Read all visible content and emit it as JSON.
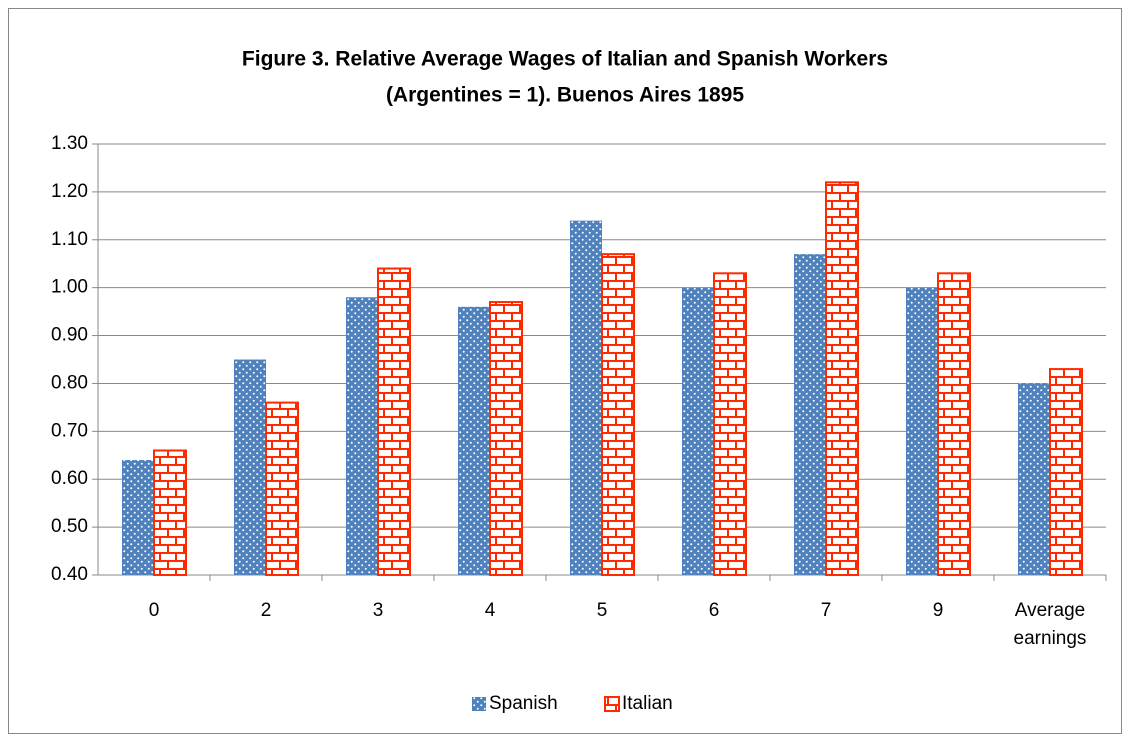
{
  "chart_data": {
    "type": "bar",
    "title": [
      "Figure 3. Relative Average Wages of Italian and Spanish Workers",
      "(Argentines = 1). Buenos Aires 1895"
    ],
    "categories": [
      "0",
      "2",
      "3",
      "4",
      "5",
      "6",
      "7",
      "9",
      "Average earnings"
    ],
    "series": [
      {
        "name": "Spanish",
        "color": "#4f81bd",
        "pattern": "dots",
        "values": [
          0.64,
          0.85,
          0.98,
          0.96,
          1.14,
          1.0,
          1.07,
          1.0,
          0.8
        ]
      },
      {
        "name": "Italian",
        "color": "#ff2a00",
        "pattern": "bricks",
        "values": [
          0.66,
          0.76,
          1.04,
          0.97,
          1.07,
          1.03,
          1.22,
          1.03,
          0.83
        ]
      }
    ],
    "ylim": [
      0.4,
      1.3
    ],
    "yticks": [
      {
        "value": 0.4,
        "label": "0.40"
      },
      {
        "value": 0.5,
        "label": "0.50"
      },
      {
        "value": 0.6,
        "label": "0.60"
      },
      {
        "value": 0.7,
        "label": "0.70"
      },
      {
        "value": 0.8,
        "label": "0.80"
      },
      {
        "value": 0.9,
        "label": "0.90"
      },
      {
        "value": 1.0,
        "label": "1.00"
      },
      {
        "value": 1.1,
        "label": "1.10"
      },
      {
        "value": 1.2,
        "label": "1.20"
      },
      {
        "value": 1.3,
        "label": "1.30"
      }
    ],
    "grid": true,
    "legend": "bottom"
  }
}
